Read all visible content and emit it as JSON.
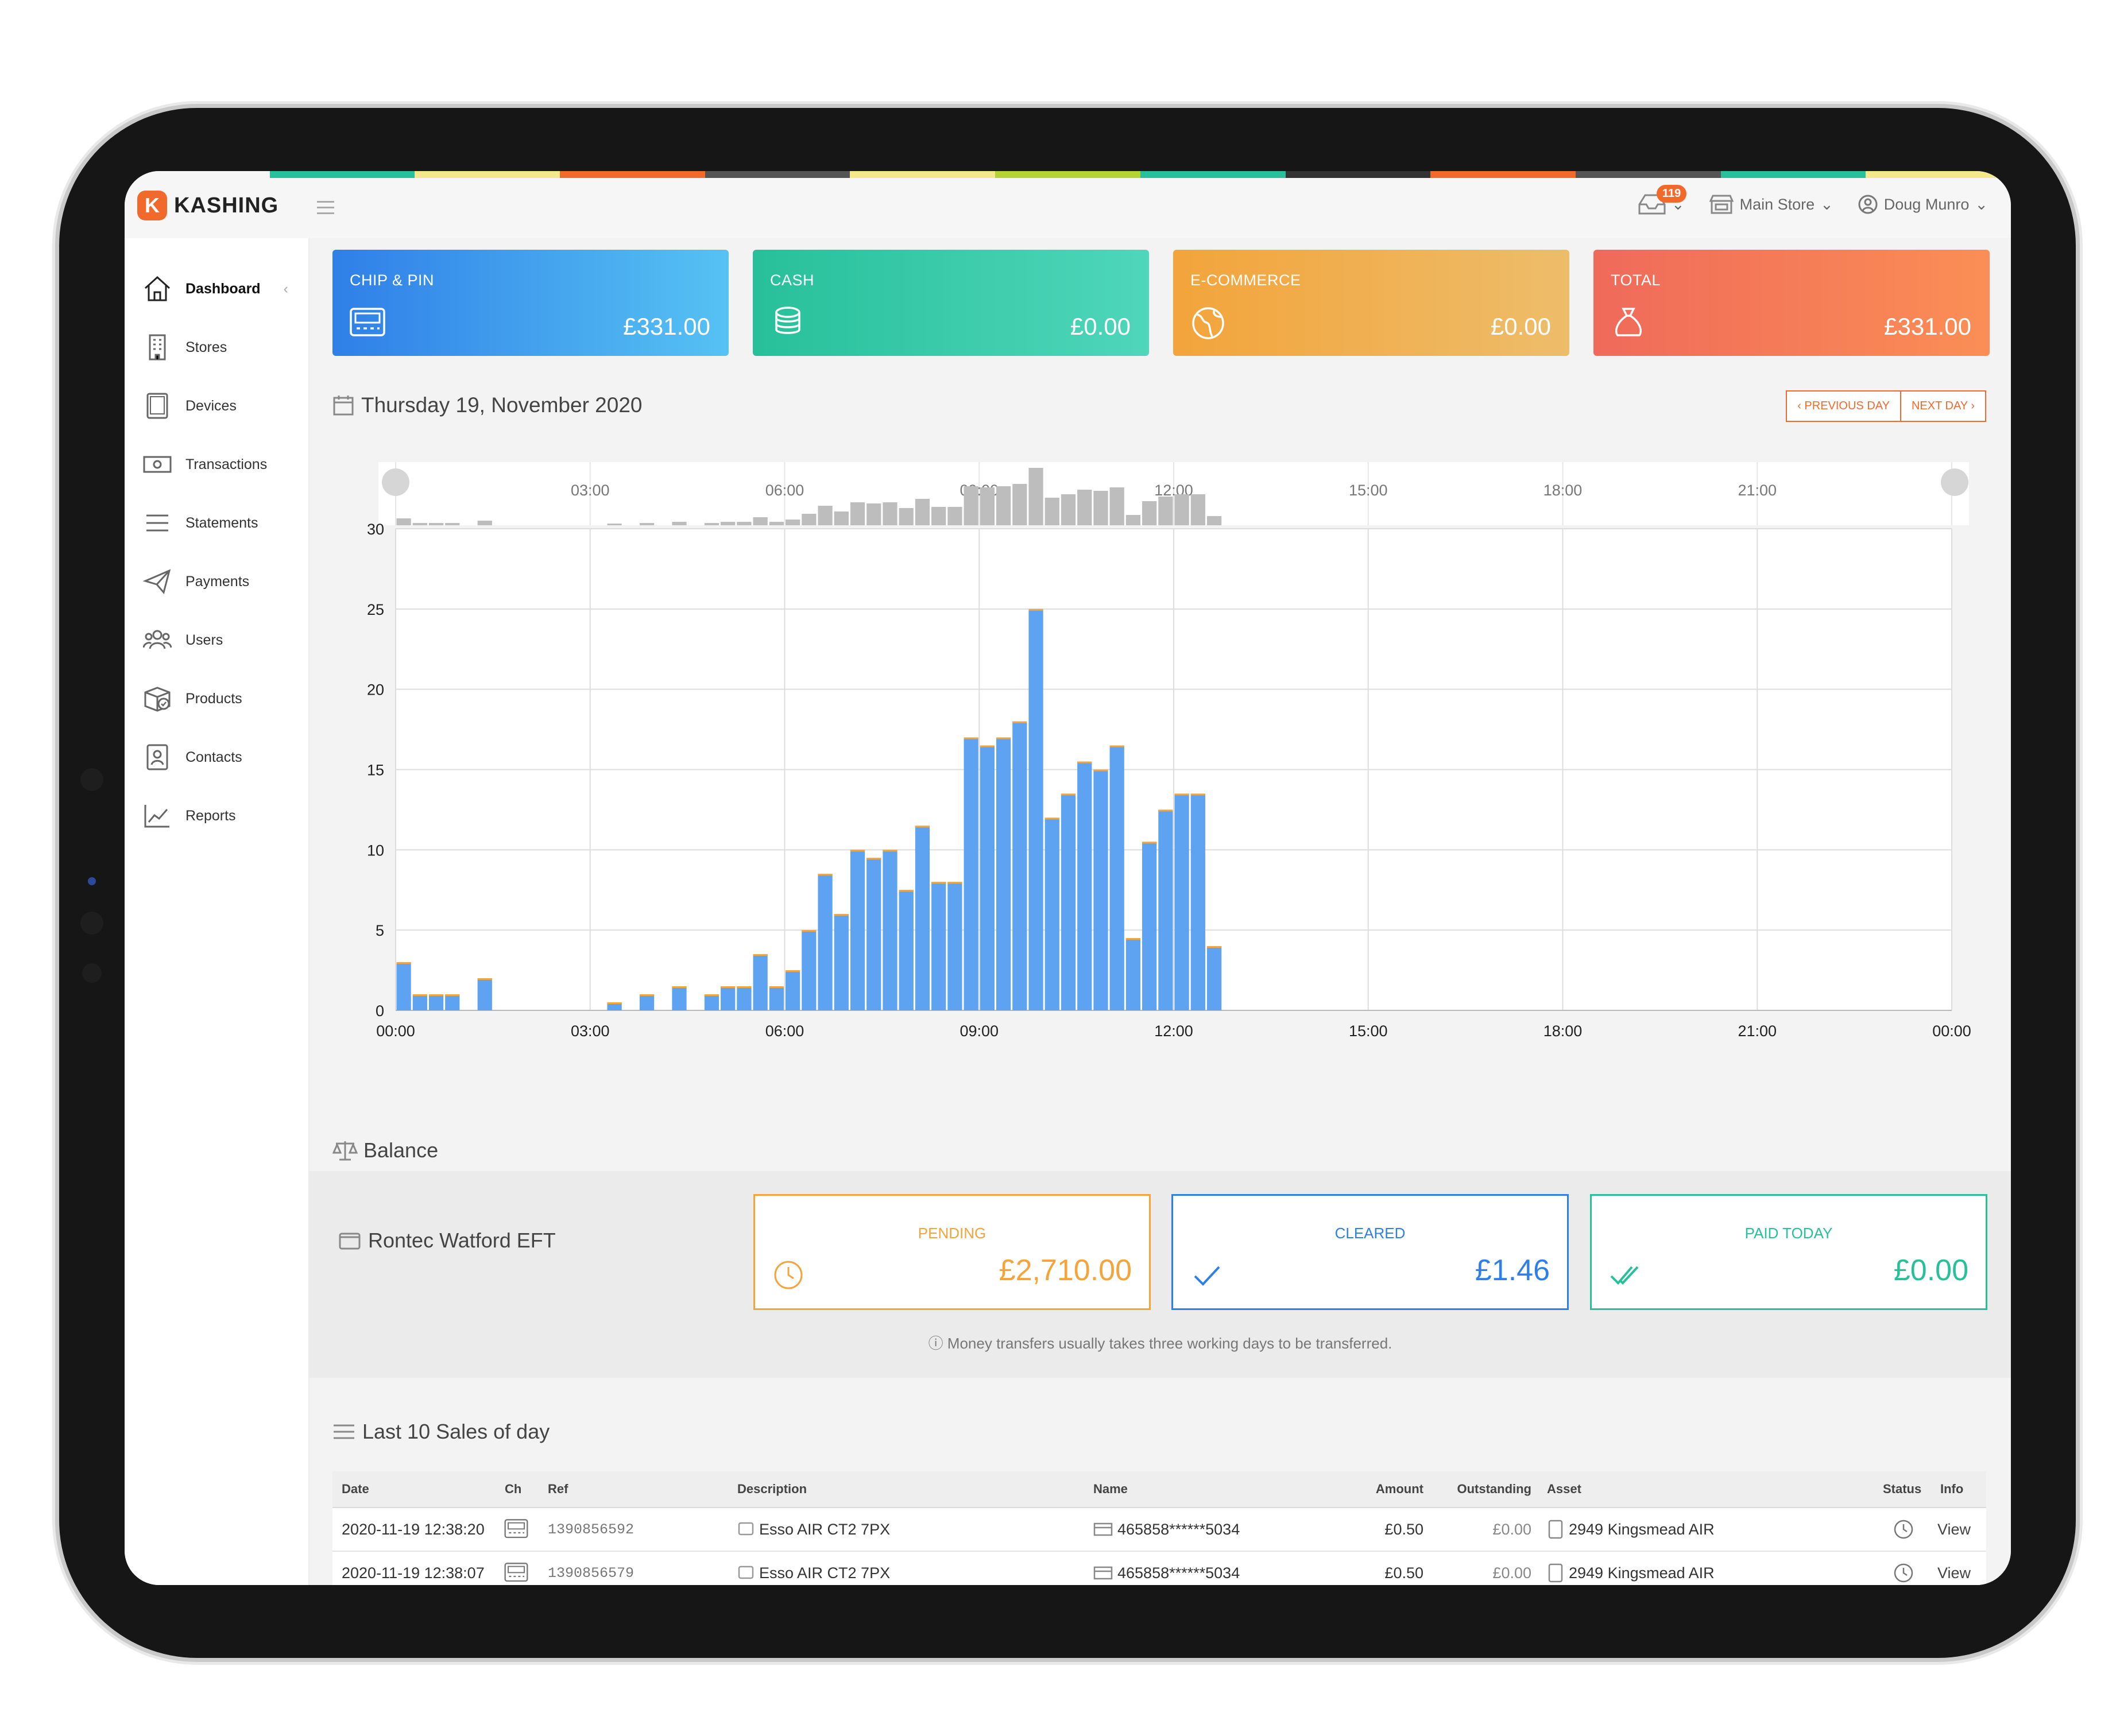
{
  "brand": {
    "name": "KASHING",
    "mark": "K",
    "accent": "#f16a2c"
  },
  "topbar": {
    "notifications_count": "119",
    "store": "Main Store",
    "user": "Doug Munro"
  },
  "sidebar": {
    "items": [
      {
        "label": "Dashboard",
        "icon": "home-icon",
        "active": true
      },
      {
        "label": "Stores",
        "icon": "building-icon"
      },
      {
        "label": "Devices",
        "icon": "tablet-icon"
      },
      {
        "label": "Transactions",
        "icon": "banknote-icon"
      },
      {
        "label": "Statements",
        "icon": "list-icon"
      },
      {
        "label": "Payments",
        "icon": "paper-plane-icon"
      },
      {
        "label": "Users",
        "icon": "users-icon"
      },
      {
        "label": "Products",
        "icon": "box-icon"
      },
      {
        "label": "Contacts",
        "icon": "contact-card-icon"
      },
      {
        "label": "Reports",
        "icon": "chart-line-icon"
      }
    ]
  },
  "cards": [
    {
      "label": "CHIP & PIN",
      "amount": "£331.00",
      "icon": "card-terminal-icon",
      "from": "#2f7fe8",
      "to": "#56c2f3"
    },
    {
      "label": "CASH",
      "amount": "£0.00",
      "icon": "coins-icon",
      "from": "#27c09a",
      "to": "#4fd6bb"
    },
    {
      "label": "E-COMMERCE",
      "amount": "£0.00",
      "icon": "globe-icon",
      "from": "#f3a43b",
      "to": "#edbd6a"
    },
    {
      "label": "TOTAL",
      "amount": "£331.00",
      "icon": "money-bag-icon",
      "from": "#ef6a5a",
      "to": "#fb8e55"
    }
  ],
  "date": {
    "label": "Thursday 19, November 2020",
    "prev": "‹ PREVIOUS DAY",
    "next": "NEXT DAY ›"
  },
  "chart_data": {
    "type": "bar",
    "x_ticks": [
      "00:00",
      "03:00",
      "06:00",
      "09:00",
      "12:00",
      "15:00",
      "18:00",
      "21:00",
      "00:00"
    ],
    "y_ticks": [
      0,
      5,
      10,
      15,
      20,
      25,
      30
    ],
    "ylim": [
      0,
      30
    ],
    "xlim_minutes": [
      0,
      1440
    ],
    "bin_minutes": 15,
    "bar_color": "#5ea2f2",
    "minimap_color": "#bdbdbd",
    "bins": [
      {
        "t": 0,
        "v": 3
      },
      {
        "t": 15,
        "v": 1
      },
      {
        "t": 30,
        "v": 1
      },
      {
        "t": 45,
        "v": 1
      },
      {
        "t": 75,
        "v": 2
      },
      {
        "t": 195,
        "v": 0.5
      },
      {
        "t": 225,
        "v": 1
      },
      {
        "t": 255,
        "v": 1.5
      },
      {
        "t": 285,
        "v": 1
      },
      {
        "t": 300,
        "v": 1.5
      },
      {
        "t": 315,
        "v": 1.5
      },
      {
        "t": 330,
        "v": 3.5
      },
      {
        "t": 345,
        "v": 1.5
      },
      {
        "t": 360,
        "v": 2.5
      },
      {
        "t": 375,
        "v": 5
      },
      {
        "t": 390,
        "v": 8.5
      },
      {
        "t": 405,
        "v": 6
      },
      {
        "t": 420,
        "v": 10
      },
      {
        "t": 435,
        "v": 9.5
      },
      {
        "t": 450,
        "v": 10
      },
      {
        "t": 465,
        "v": 7.5
      },
      {
        "t": 480,
        "v": 11.5
      },
      {
        "t": 495,
        "v": 8
      },
      {
        "t": 510,
        "v": 8
      },
      {
        "t": 525,
        "v": 17
      },
      {
        "t": 540,
        "v": 16.5
      },
      {
        "t": 555,
        "v": 17
      },
      {
        "t": 570,
        "v": 18
      },
      {
        "t": 585,
        "v": 25
      },
      {
        "t": 600,
        "v": 12
      },
      {
        "t": 615,
        "v": 13.5
      },
      {
        "t": 630,
        "v": 15.5
      },
      {
        "t": 645,
        "v": 15
      },
      {
        "t": 660,
        "v": 16.5
      },
      {
        "t": 675,
        "v": 4.5
      },
      {
        "t": 690,
        "v": 10.5
      },
      {
        "t": 705,
        "v": 12.5
      },
      {
        "t": 720,
        "v": 13.5
      },
      {
        "t": 735,
        "v": 13.5
      },
      {
        "t": 750,
        "v": 4
      }
    ]
  },
  "balance": {
    "title": "Balance",
    "account": "Rontec Watford EFT",
    "pending": {
      "label": "PENDING",
      "value": "£2,710.00",
      "color": "#f3a43b"
    },
    "cleared": {
      "label": "CLEARED",
      "value": "£1.46",
      "color": "#2f7fe8"
    },
    "paid": {
      "label": "PAID TODAY",
      "value": "£0.00",
      "color": "#27c09a"
    },
    "note": "ⓘ Money transfers usually takes three working days to be transferred."
  },
  "sales": {
    "title": "Last 10 Sales of day",
    "headers": {
      "date": "Date",
      "ch": "Ch",
      "ref": "Ref",
      "description": "Description",
      "name": "Name",
      "amount": "Amount",
      "outstanding": "Outstanding",
      "asset": "Asset",
      "status": "Status",
      "info": "Info"
    },
    "rows": [
      {
        "date": "2020-11-19 12:38:20",
        "ref": "1390856592",
        "description": "Esso AIR CT2 7PX",
        "name": "465858******5034",
        "amount": "£0.50",
        "outstanding": "£0.00",
        "asset": "2949 Kingsmead AIR",
        "info": "View"
      },
      {
        "date": "2020-11-19 12:38:07",
        "ref": "1390856579",
        "description": "Esso AIR CT2 7PX",
        "name": "465858******5034",
        "amount": "£0.50",
        "outstanding": "£0.00",
        "asset": "2949 Kingsmead AIR",
        "info": "View"
      }
    ]
  }
}
